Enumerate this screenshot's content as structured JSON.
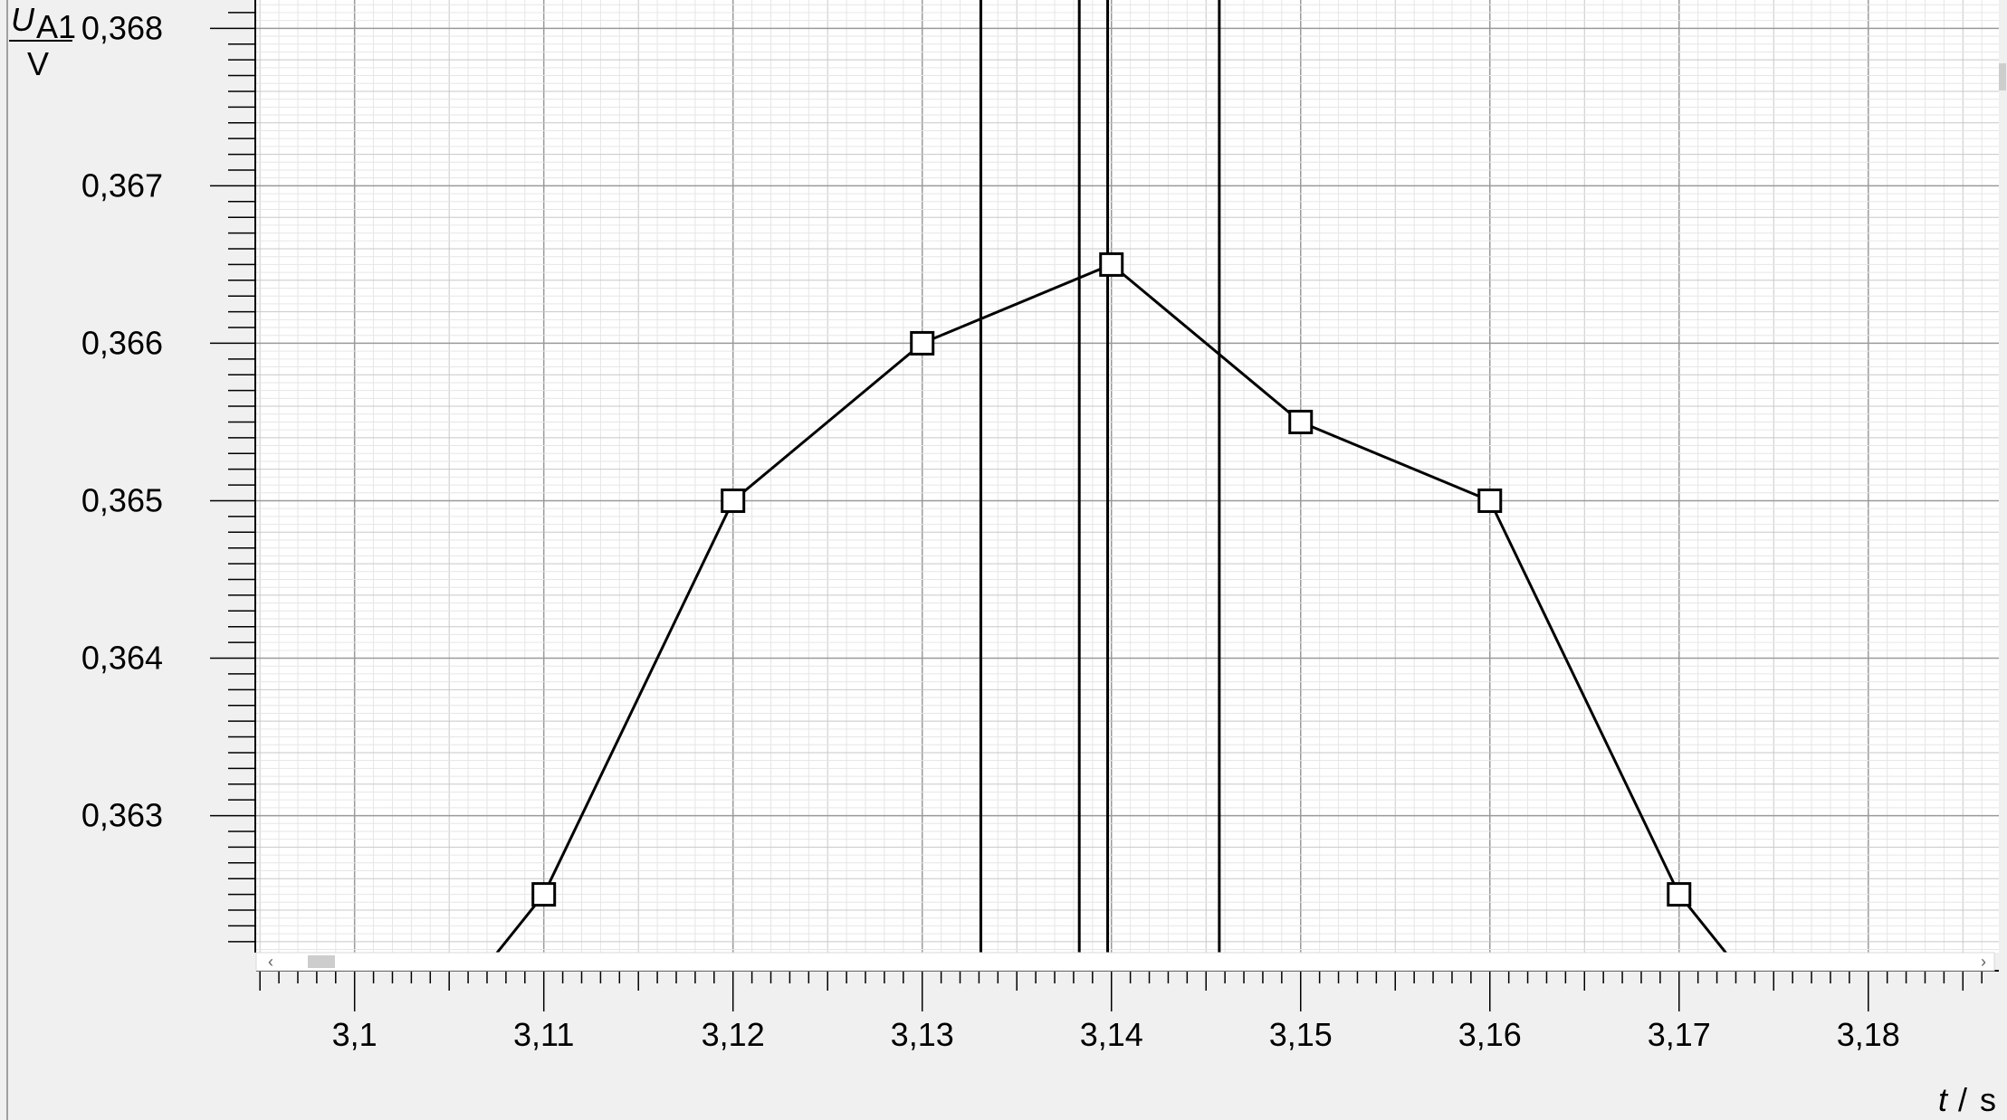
{
  "chart_data": {
    "type": "line",
    "xlabel": {
      "symbol": "t",
      "unit": "s"
    },
    "ylabel": {
      "symbol": "U",
      "subscript": "A1",
      "unit": "V"
    },
    "xlim": [
      3.0948,
      3.1869
    ],
    "ylim": [
      0.36213,
      0.36818
    ],
    "x_ticks": [
      {
        "value": 3.1,
        "label": "3,1"
      },
      {
        "value": 3.11,
        "label": "3,11"
      },
      {
        "value": 3.12,
        "label": "3,12"
      },
      {
        "value": 3.13,
        "label": "3,13"
      },
      {
        "value": 3.14,
        "label": "3,14"
      },
      {
        "value": 3.15,
        "label": "3,15"
      },
      {
        "value": 3.16,
        "label": "3,16"
      },
      {
        "value": 3.17,
        "label": "3,17"
      },
      {
        "value": 3.18,
        "label": "3,18"
      }
    ],
    "y_ticks": [
      {
        "value": 0.363,
        "label": "0,363"
      },
      {
        "value": 0.364,
        "label": "0,364"
      },
      {
        "value": 0.365,
        "label": "0,365"
      },
      {
        "value": 0.366,
        "label": "0,366"
      },
      {
        "value": 0.367,
        "label": "0,367"
      },
      {
        "value": 0.368,
        "label": "0,368"
      }
    ],
    "grid": true,
    "series": [
      {
        "marker": "square",
        "color": "#000000",
        "x": [
          3.1,
          3.11,
          3.12,
          3.13,
          3.14,
          3.15,
          3.16,
          3.17,
          3.18
        ],
        "y": [
          0.361,
          0.3625,
          0.365,
          0.366,
          0.3665,
          0.3655,
          0.365,
          0.3625,
          0.361
        ]
      }
    ],
    "vertical_lines": [
      3.1331,
      3.1383,
      3.1398,
      3.1457
    ]
  },
  "scrollbar": {
    "left_arrow": "‹",
    "right_arrow": "›"
  }
}
